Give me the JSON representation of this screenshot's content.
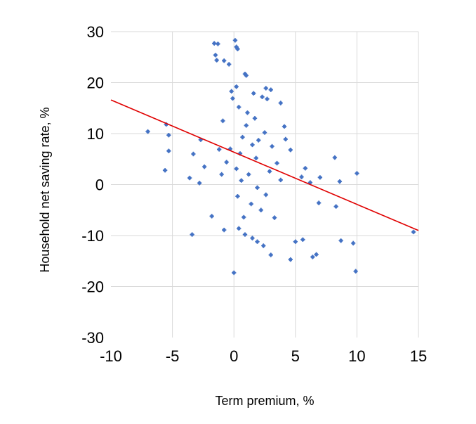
{
  "chart_data": {
    "type": "scatter",
    "xlabel": "Term premium, %",
    "ylabel": "Household net saving rate, %",
    "xlim": [
      -10,
      15
    ],
    "ylim": [
      -30,
      30
    ],
    "x_ticks": [
      -10,
      -5,
      0,
      5,
      10,
      15
    ],
    "y_ticks": [
      -30,
      -20,
      -10,
      0,
      10,
      20,
      30
    ],
    "x_tick_labels": [
      "-10",
      "-5",
      "0",
      "5",
      "10",
      "15"
    ],
    "y_tick_labels": [
      "-30",
      "-20",
      "-10",
      "0",
      "10",
      "20",
      "30"
    ],
    "grid": "vertical and horizontal light gray gridlines",
    "legend": "none",
    "colors": {
      "points": "#4472c4",
      "trendline": "#e00000",
      "grid": "#d9d9d9"
    },
    "series": [
      {
        "marker": "star",
        "points": [
          [
            0.1,
            28.3
          ],
          [
            0.2,
            27.0
          ],
          [
            0.3,
            26.6
          ],
          [
            -1.6,
            27.7
          ],
          [
            -1.3,
            27.6
          ],
          [
            -1.5,
            25.4
          ],
          [
            -1.4,
            24.4
          ],
          [
            -0.8,
            24.3
          ],
          [
            -0.4,
            23.6
          ],
          [
            0.9,
            21.7
          ],
          [
            1.0,
            21.4
          ],
          [
            0.2,
            19.2
          ],
          [
            -0.2,
            18.3
          ],
          [
            2.6,
            18.9
          ],
          [
            3.0,
            18.6
          ],
          [
            1.6,
            17.9
          ],
          [
            2.3,
            17.2
          ],
          [
            -0.1,
            16.9
          ],
          [
            2.7,
            16.8
          ],
          [
            3.8,
            16.0
          ],
          [
            -7.0,
            10.4
          ],
          [
            -5.5,
            11.8
          ],
          [
            -5.3,
            9.7
          ],
          [
            -5.3,
            6.6
          ],
          [
            -5.6,
            2.8
          ],
          [
            -3.3,
            6.0
          ],
          [
            -3.6,
            1.3
          ],
          [
            -2.7,
            8.8
          ],
          [
            -2.4,
            3.5
          ],
          [
            -2.8,
            0.3
          ],
          [
            -3.4,
            -9.8
          ],
          [
            -1.8,
            -6.2
          ],
          [
            -0.8,
            -8.9
          ],
          [
            0.0,
            -17.3
          ],
          [
            0.4,
            -8.6
          ],
          [
            0.9,
            -9.8
          ],
          [
            1.5,
            -10.5
          ],
          [
            1.9,
            -11.2
          ],
          [
            2.4,
            -12.0
          ],
          [
            3.0,
            -13.8
          ],
          [
            4.6,
            -14.7
          ],
          [
            5.0,
            -11.2
          ],
          [
            5.6,
            -10.8
          ],
          [
            6.4,
            -14.2
          ],
          [
            6.7,
            -13.7
          ],
          [
            8.3,
            -4.3
          ],
          [
            8.7,
            -11.0
          ],
          [
            9.7,
            -11.5
          ],
          [
            9.9,
            -17.0
          ],
          [
            10.0,
            2.2
          ],
          [
            8.2,
            5.3
          ],
          [
            8.6,
            0.6
          ],
          [
            7.0,
            1.4
          ],
          [
            6.2,
            0.4
          ],
          [
            6.9,
            -3.6
          ],
          [
            5.5,
            1.5
          ],
          [
            5.8,
            3.2
          ],
          [
            4.2,
            8.9
          ],
          [
            4.6,
            6.8
          ],
          [
            4.1,
            11.4
          ],
          [
            14.6,
            -9.3
          ],
          [
            1.0,
            11.6
          ],
          [
            0.7,
            9.3
          ],
          [
            1.5,
            7.8
          ],
          [
            0.5,
            6.1
          ],
          [
            1.8,
            5.2
          ],
          [
            0.2,
            3.1
          ],
          [
            1.2,
            2.0
          ],
          [
            0.6,
            0.8
          ],
          [
            1.9,
            -0.6
          ],
          [
            0.3,
            -2.3
          ],
          [
            1.4,
            -3.8
          ],
          [
            2.2,
            -5.0
          ],
          [
            0.8,
            -6.4
          ],
          [
            -0.6,
            4.4
          ],
          [
            -1.0,
            2.0
          ],
          [
            -0.3,
            7.0
          ],
          [
            2.5,
            10.2
          ],
          [
            3.1,
            7.5
          ],
          [
            3.5,
            4.2
          ],
          [
            2.9,
            2.6
          ],
          [
            3.8,
            0.9
          ],
          [
            2.6,
            -2.0
          ],
          [
            3.3,
            -6.5
          ],
          [
            -0.9,
            12.5
          ],
          [
            1.1,
            14.1
          ],
          [
            1.7,
            13.0
          ],
          [
            2.0,
            8.7
          ],
          [
            0.4,
            15.2
          ],
          [
            -1.2,
            6.9
          ]
        ]
      }
    ],
    "trendline": {
      "x": [
        -10,
        15
      ],
      "y": [
        16.6,
        -9.0
      ]
    }
  }
}
